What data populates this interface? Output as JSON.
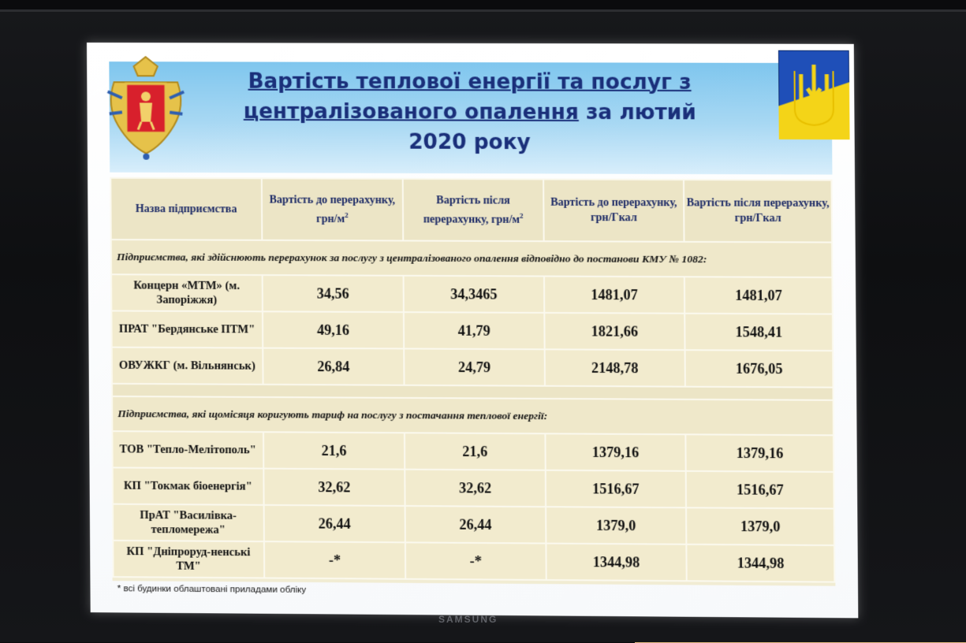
{
  "tv": {
    "brand": "SAMSUNG"
  },
  "slide": {
    "title_line1": "Вартість теплової енергії та послуг з",
    "title_line2a": "централізованого опалення",
    "title_line2b": " за лютий",
    "title_line3": "2020 року",
    "footnote": "* всі будинки облаштовані приладами обліку"
  },
  "table": {
    "headers": [
      "Назва підприємства",
      "Вартість до перерахунку, грн/м",
      "Вартість після перерахунку, грн/м",
      "Вартість до перерахунку, грн/Гкал",
      "Вартість після перерахунку, грн/Гкал"
    ],
    "header_sup": "2",
    "group1_note": "Підприємства, які здійснюють перерахунок за послугу з централізованого опалення відповідно до постанови КМУ № 1082:",
    "group1_rows": [
      {
        "name": "Концерн «МТМ» (м. Запоріжжя)",
        "v1": "34,56",
        "v2": "34,3465",
        "v3": "1481,07",
        "v4": "1481,07"
      },
      {
        "name": "ПРАТ \"Бердянське ПТМ\"",
        "v1": "49,16",
        "v2": "41,79",
        "v3": "1821,66",
        "v4": "1548,41"
      },
      {
        "name": "ОВУЖКГ (м. Вільнянськ)",
        "v1": "26,84",
        "v2": "24,79",
        "v3": "2148,78",
        "v4": "1676,05"
      }
    ],
    "group2_note": "Підприємства, які щомісяця коригують тариф на послугу з постачання теплової енергії:",
    "group2_rows": [
      {
        "name": "ТОВ \"Тепло-Мелітополь\"",
        "v1": "21,6",
        "v2": "21,6",
        "v3": "1379,16",
        "v4": "1379,16"
      },
      {
        "name": "КП \"Токмак біоенергія\"",
        "v1": "32,62",
        "v2": "32,62",
        "v3": "1516,67",
        "v4": "1516,67"
      },
      {
        "name": "ПрАТ \"Василівка-тепломережа\"",
        "v1": "26,44",
        "v2": "26,44",
        "v3": "1379,0",
        "v4": "1379,0"
      },
      {
        "name": "КП \"Дніпроруд-ненські ТМ\"",
        "v1": "-*",
        "v2": "-*",
        "v3": "1344,98",
        "v4": "1344,98"
      }
    ]
  },
  "colors": {
    "title": "#1a2f7a",
    "band": "#7fc6ee",
    "table_bg": "#f2ebce",
    "flag_blue": "#1f4fb8",
    "flag_yellow": "#f4d418"
  }
}
